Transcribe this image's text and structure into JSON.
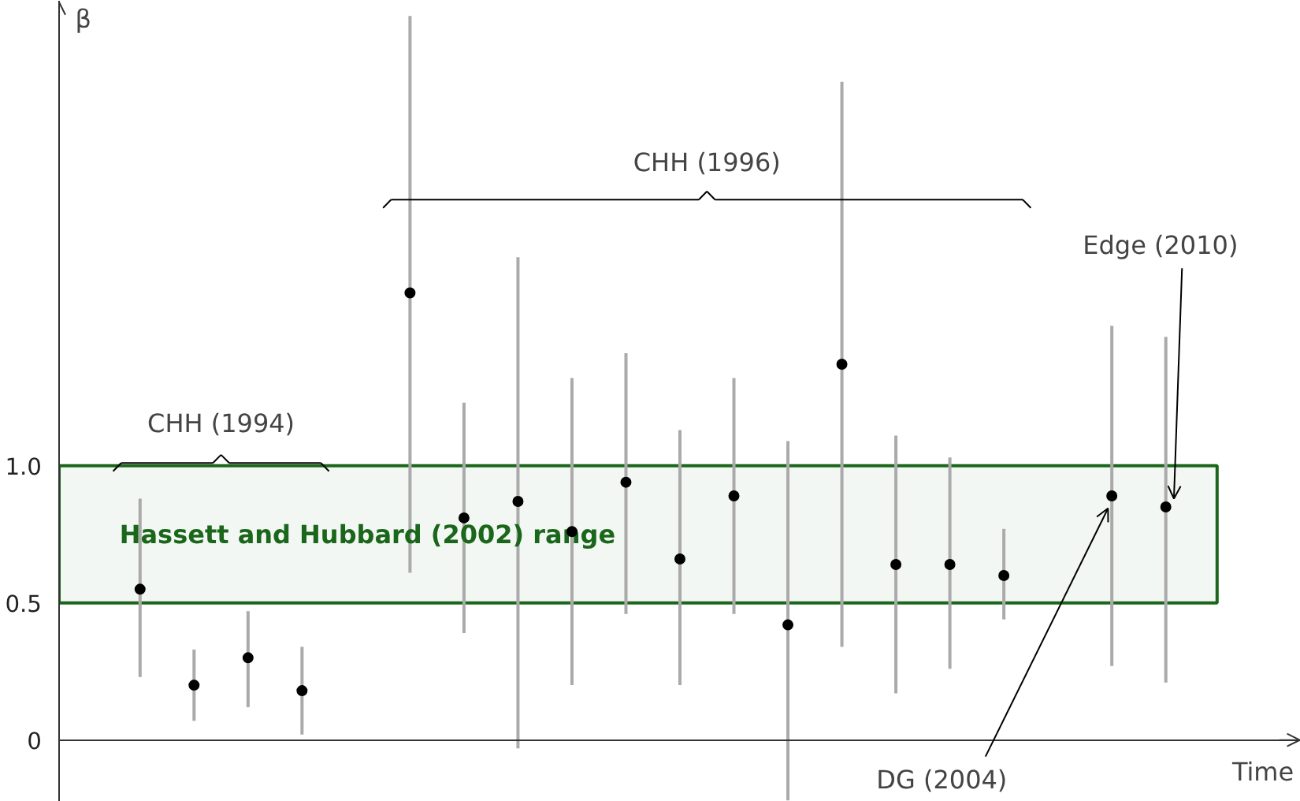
{
  "chart_data": {
    "type": "scatter",
    "ylabel": "β",
    "xlabel": "Time",
    "categories": [
      null,
      null,
      null,
      null,
      null,
      null,
      null,
      null,
      null,
      null,
      null,
      null,
      null,
      null,
      null,
      null,
      null,
      null,
      null,
      null,
      null,
      null,
      null
    ],
    "values": [
      null,
      0.55,
      0.2,
      0.3,
      0.18,
      null,
      1.63,
      0.81,
      0.87,
      0.76,
      0.94,
      0.66,
      0.89,
      0.42,
      1.37,
      0.64,
      0.64,
      0.6,
      null,
      0.89,
      0.85,
      null,
      null
    ],
    "errors": [
      null,
      [
        0.23,
        0.88
      ],
      [
        0.07,
        0.33
      ],
      [
        0.12,
        0.47
      ],
      [
        0.02,
        0.34
      ],
      null,
      [
        0.61,
        2.64
      ],
      [
        0.39,
        1.23
      ],
      [
        -0.03,
        1.76
      ],
      [
        0.2,
        1.32
      ],
      [
        0.46,
        1.41
      ],
      [
        0.2,
        1.13
      ],
      [
        0.46,
        1.32
      ],
      [
        -0.22,
        1.09
      ],
      [
        0.34,
        2.4
      ],
      [
        0.17,
        1.11
      ],
      [
        0.26,
        1.03
      ],
      [
        0.44,
        0.77
      ],
      null,
      [
        0.27,
        1.51
      ],
      [
        0.21,
        1.47
      ],
      null,
      null
    ],
    "color": "#000000",
    "marker": "circle",
    "grid": false,
    "tick_labels": "y",
    "ylim": [
      -0.225,
      2.695
    ],
    "yticks": [
      0,
      0.5,
      {
        "value": 1,
        "label": "1.0"
      }
    ],
    "bands": [
      {
        "axis": "y",
        "from": 0.5,
        "to": 1.0,
        "label": "Hassett and Hubbard (2002) range",
        "color": "#1a661a"
      }
    ],
    "annotations": [
      "CHH (1994)",
      "CHH (1996)",
      "Edge (2010)",
      "DG (2004)"
    ]
  }
}
